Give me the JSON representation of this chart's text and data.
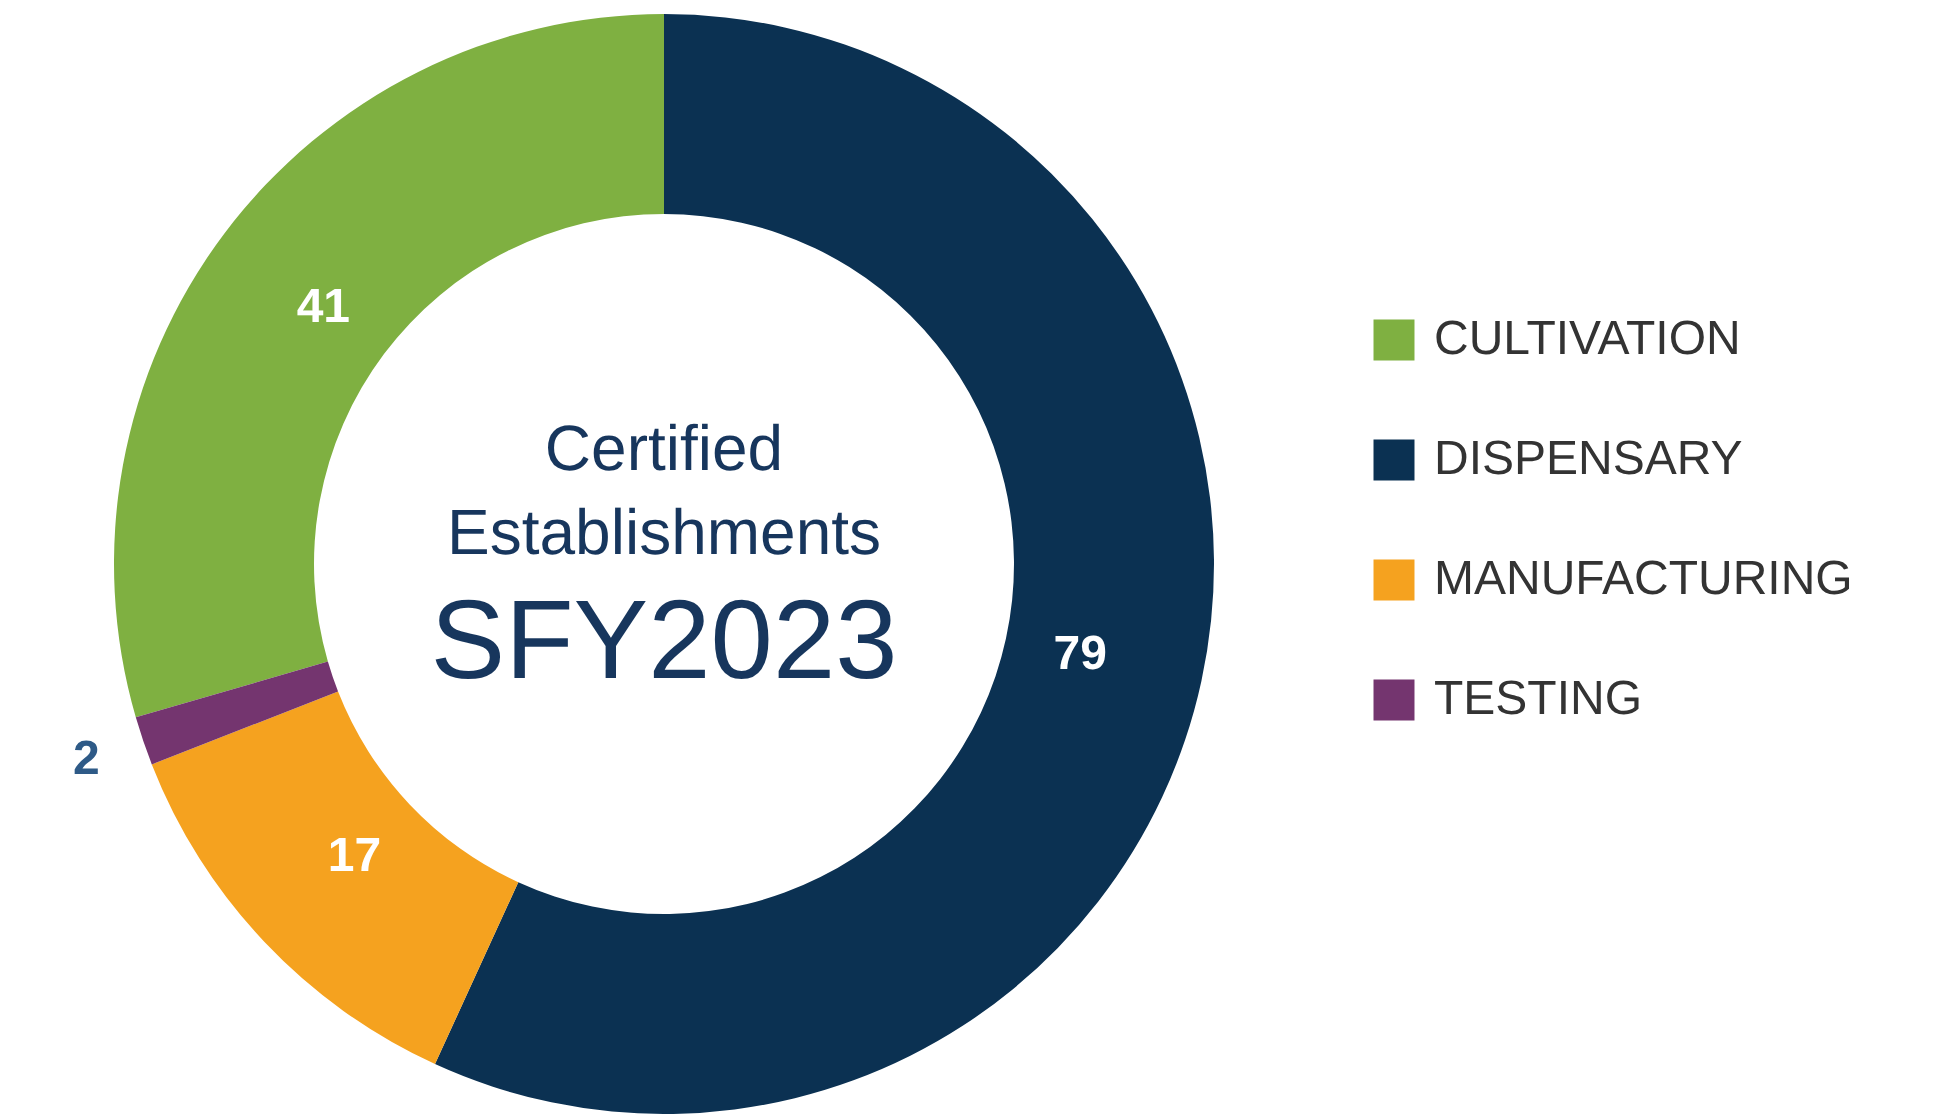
{
  "chart_data": {
    "type": "donut",
    "title": "Certified Establishments",
    "subtitle": "SFY2023",
    "categories": [
      "CULTIVATION",
      "DISPENSARY",
      "MANUFACTURING",
      "TESTING"
    ],
    "values": [
      41,
      79,
      17,
      2
    ],
    "colors": [
      "#7fb041",
      "#0b3152",
      "#f5a21f",
      "#74356f"
    ],
    "data_labels": true,
    "legend": "right"
  }
}
